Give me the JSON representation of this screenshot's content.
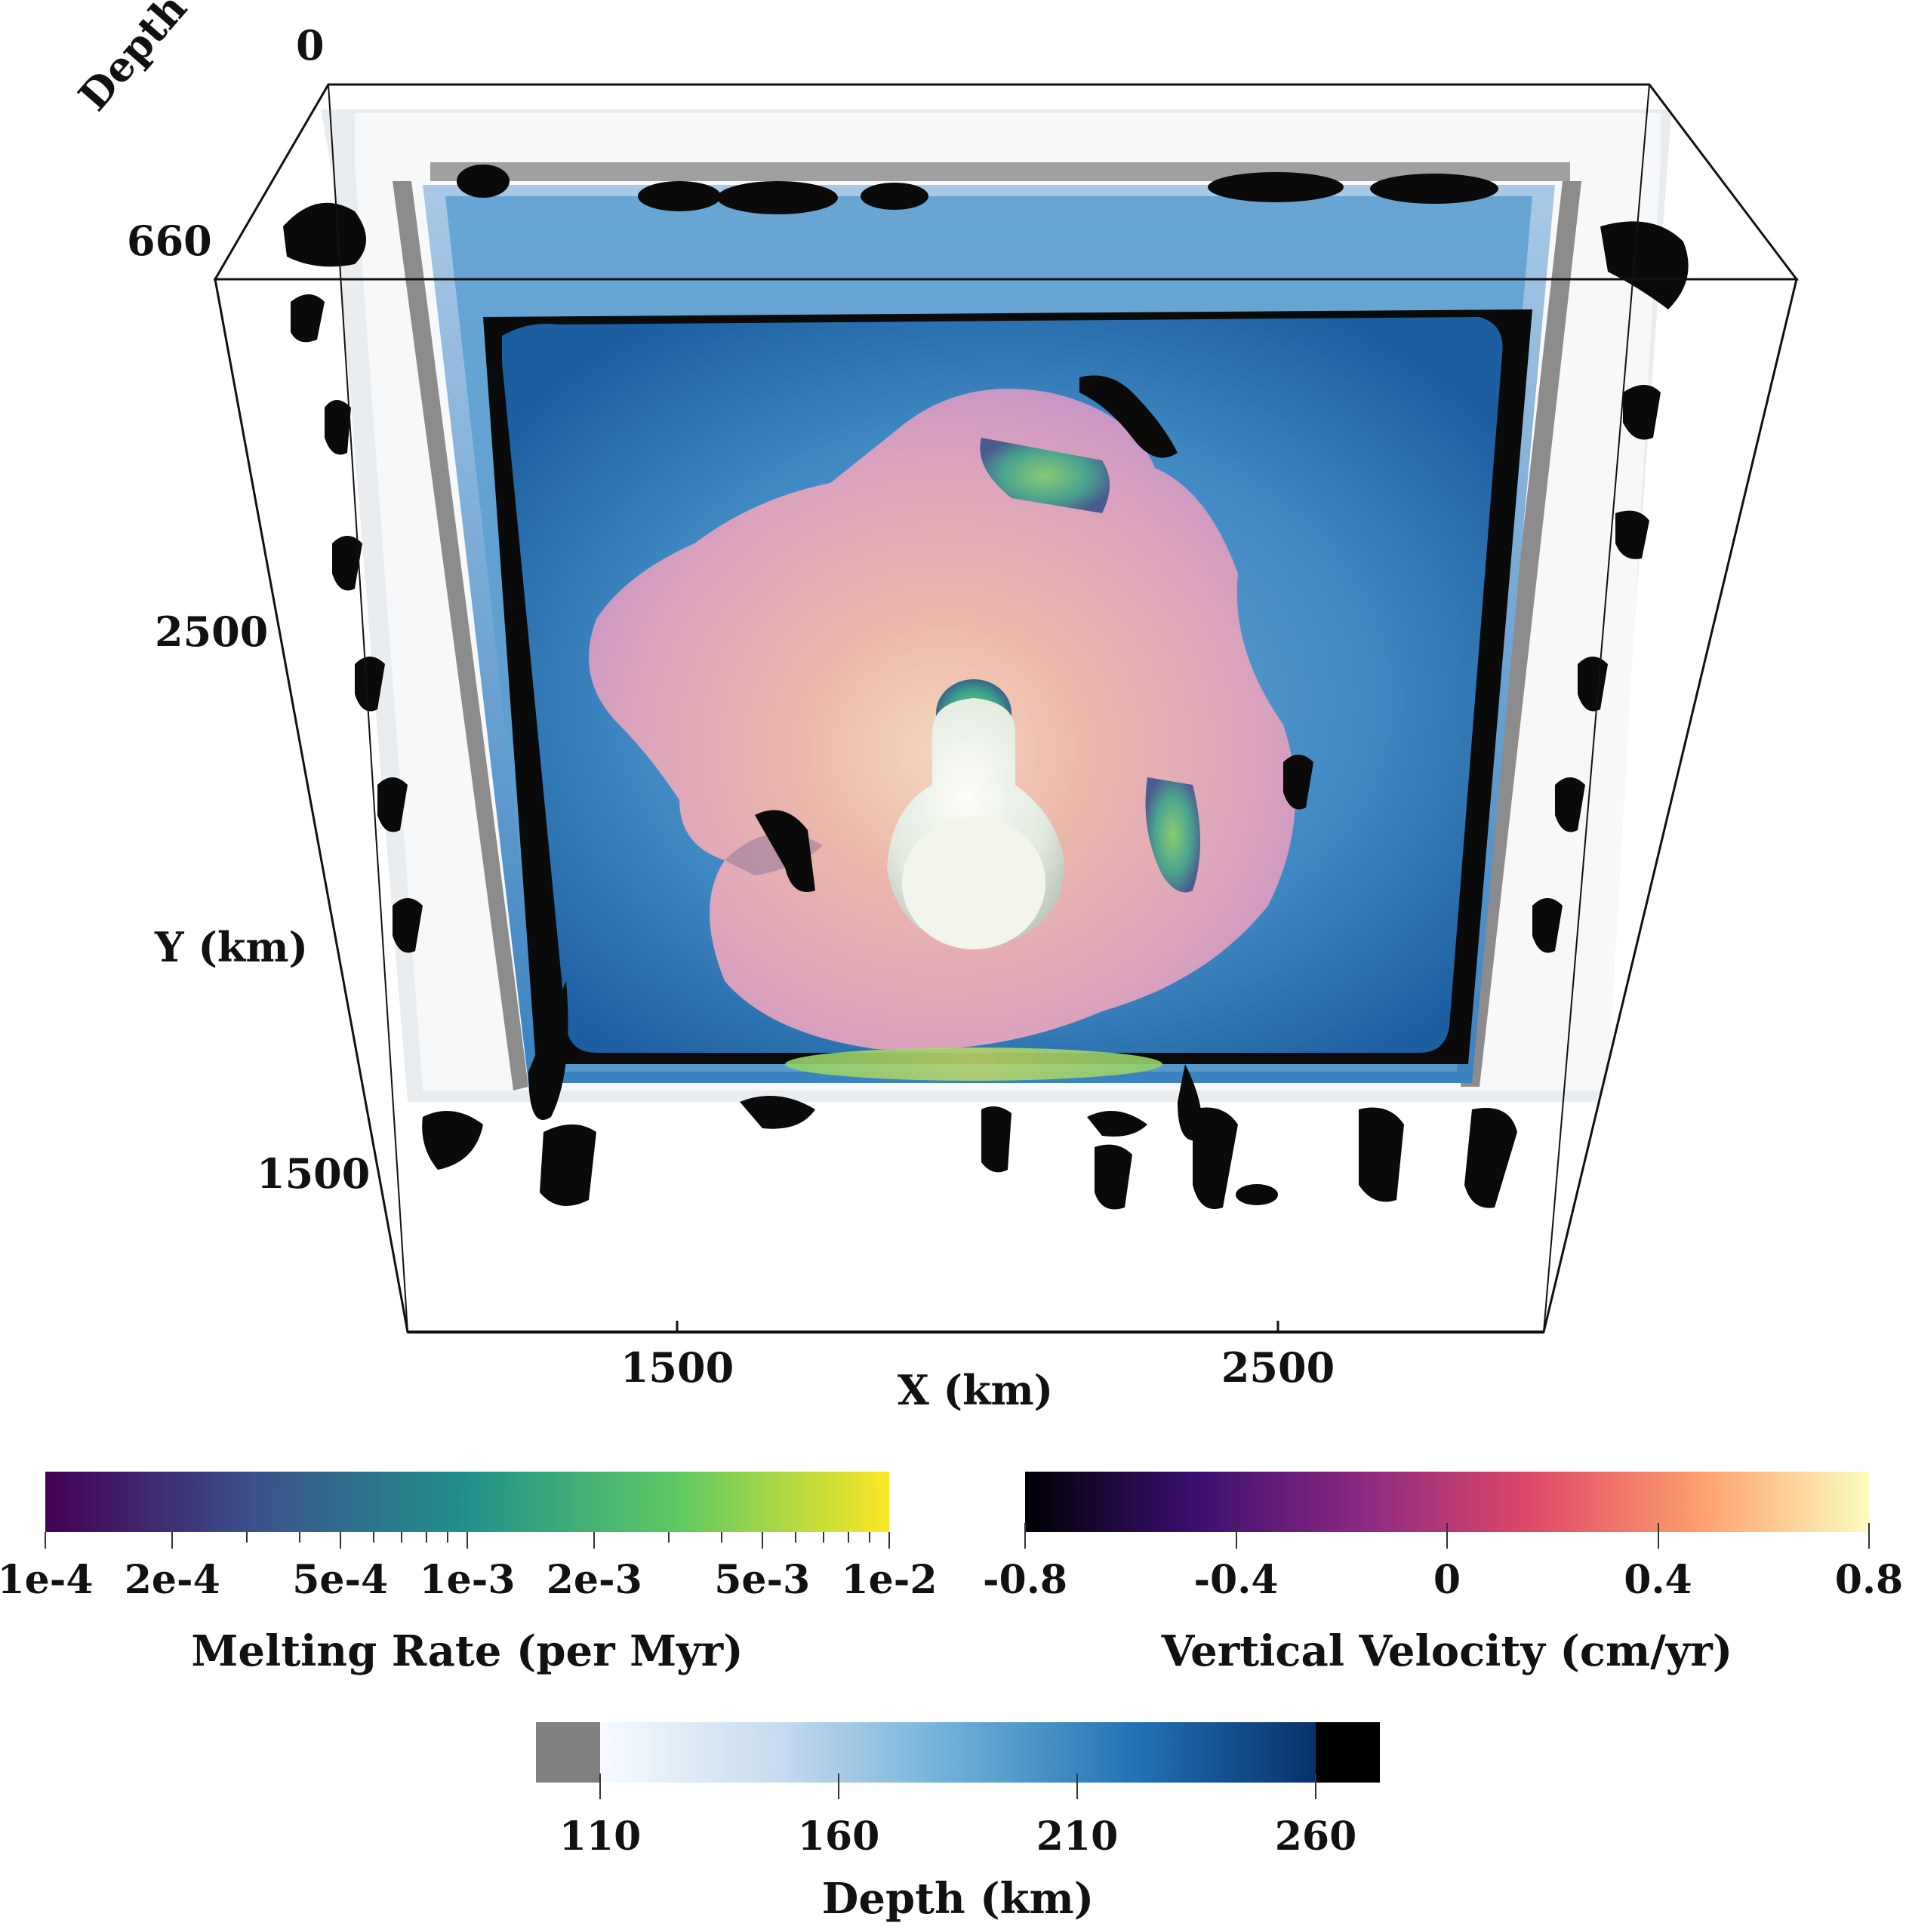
{
  "axes": {
    "depth_label": "Depth (km)",
    "depth_ticks": [
      "0",
      "660"
    ],
    "y_label": "Y (km)",
    "y_ticks": [
      "2500",
      "1500"
    ],
    "x_label": "X (km)",
    "x_ticks": [
      "1500",
      "2500"
    ]
  },
  "colorbars": {
    "melting_rate": {
      "title": "Melting Rate (per Myr)",
      "scale": "log",
      "range": [
        0.0001,
        0.01
      ],
      "tick_labels": [
        "1e-4",
        "2e-4",
        "5e-4",
        "1e-3",
        "2e-3",
        "5e-3",
        "1e-2"
      ],
      "colormap": "viridis",
      "colors": [
        "#440154",
        "#3b528b",
        "#21918c",
        "#5ec962",
        "#fde725"
      ]
    },
    "vertical_velocity": {
      "title": "Vertical Velocity (cm/yr)",
      "range": [
        -0.8,
        0.8
      ],
      "tick_labels": [
        "-0.8",
        "-0.4",
        "0",
        "0.4",
        "0.8"
      ],
      "colormap": "magma",
      "colors": [
        "#000004",
        "#3b0f70",
        "#8c2981",
        "#de4968",
        "#fe9f6d",
        "#fcfdbf"
      ]
    },
    "depth": {
      "title": "Depth (km)",
      "range": [
        110,
        260
      ],
      "tick_labels": [
        "110",
        "160",
        "210",
        "260"
      ],
      "colormap": "blues",
      "colors": [
        "#f7fbff",
        "#c6dbef",
        "#6baed6",
        "#2171b5",
        "#08306b"
      ],
      "below_color": "#808080",
      "above_color": "#000000"
    }
  }
}
